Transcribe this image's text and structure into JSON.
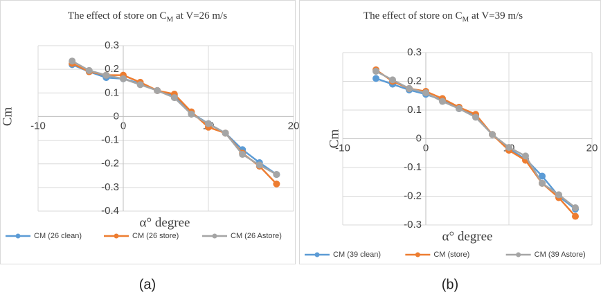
{
  "chart_data": [
    {
      "type": "line",
      "caption": "(a)",
      "title": "The effect of store on C",
      "title_subscript": "M",
      "title_suffix": " at V=26 m/s",
      "x_label": "α° degree",
      "y_label": "Cm",
      "x": [
        -6,
        -4,
        -2,
        0,
        2,
        4,
        6,
        8,
        10,
        12,
        14,
        16,
        18
      ],
      "xlim": [
        -10,
        20
      ],
      "xticks": [
        -10,
        0,
        10,
        20
      ],
      "ylim": [
        -0.4,
        0.3
      ],
      "yticks": [
        -0.4,
        -0.3,
        -0.2,
        -0.1,
        0,
        0.1,
        0.2,
        0.3
      ],
      "grid": true,
      "legend": "bottom",
      "series": [
        {
          "name": "CM (26 clean)",
          "color": "#5b9bd5",
          "values": [
            0.22,
            0.19,
            0.165,
            0.16,
            0.14,
            0.11,
            0.09,
            0.015,
            -0.03,
            -0.07,
            -0.14,
            -0.195,
            -0.245
          ]
        },
        {
          "name": "CM (26 store)",
          "color": "#ed7d31",
          "values": [
            0.225,
            0.19,
            0.175,
            0.175,
            0.145,
            0.11,
            0.095,
            0.02,
            -0.045,
            -0.07,
            -0.155,
            -0.21,
            -0.285
          ]
        },
        {
          "name": "CM (26 Astore)",
          "color": "#a5a5a5",
          "values": [
            0.235,
            0.195,
            0.175,
            0.16,
            0.135,
            0.11,
            0.08,
            0.01,
            -0.03,
            -0.07,
            -0.16,
            -0.205,
            -0.245
          ]
        }
      ]
    },
    {
      "type": "line",
      "caption": "(b)",
      "title": "The effect of store on C",
      "title_subscript": "M",
      "title_suffix": " at V=39 m/s",
      "x_label": "α° degree",
      "y_label": "Cm",
      "x": [
        -6,
        -4,
        -2,
        0,
        2,
        4,
        6,
        8,
        10,
        12,
        14,
        16,
        18
      ],
      "xlim": [
        -10,
        20
      ],
      "xticks": [
        -10,
        0,
        10,
        20
      ],
      "ylim": [
        -0.3,
        0.3
      ],
      "yticks": [
        -0.3,
        -0.2,
        -0.1,
        0,
        0.1,
        0.2,
        0.3
      ],
      "grid": true,
      "legend": "bottom",
      "series": [
        {
          "name": "CM (39 clean)",
          "color": "#5b9bd5",
          "values": [
            0.21,
            0.19,
            0.17,
            0.155,
            0.135,
            0.105,
            0.08,
            0.015,
            -0.035,
            -0.07,
            -0.13,
            -0.2,
            -0.245
          ]
        },
        {
          "name": "CM (store)",
          "color": "#ed7d31",
          "values": [
            0.24,
            0.2,
            0.175,
            0.165,
            0.14,
            0.11,
            0.085,
            0.015,
            -0.04,
            -0.075,
            -0.155,
            -0.205,
            -0.27
          ]
        },
        {
          "name": "CM (39 Astore)",
          "color": "#a5a5a5",
          "values": [
            0.235,
            0.205,
            0.175,
            0.16,
            0.13,
            0.105,
            0.075,
            0.015,
            -0.03,
            -0.06,
            -0.155,
            -0.195,
            -0.24
          ]
        }
      ]
    }
  ]
}
